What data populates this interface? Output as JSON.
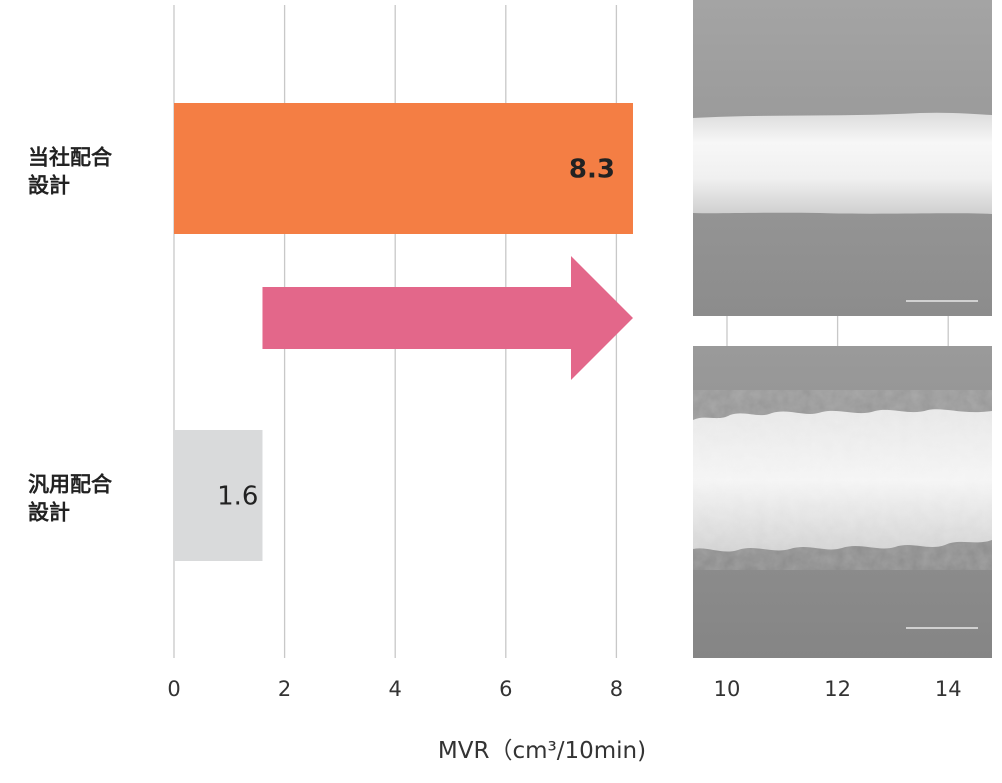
{
  "chart_data": {
    "type": "bar",
    "orientation": "horizontal",
    "categories": [
      [
        "当社配合",
        "設計"
      ],
      [
        "汎用配合",
        "設計"
      ]
    ],
    "values": [
      8.3,
      1.6
    ],
    "value_labels": [
      "8.3",
      "1.6"
    ],
    "bar_colors": [
      "#f47e44",
      "#d9dadb"
    ],
    "xlabel": "MVR（cm³/10min)",
    "xlim": [
      0,
      15
    ],
    "xticks": [
      0,
      2,
      4,
      6,
      8,
      10,
      12,
      14
    ],
    "grid": "vertical",
    "arrow_color": "#e3678a",
    "arrow_from_value": 1.6,
    "arrow_to_value": 8.3
  }
}
